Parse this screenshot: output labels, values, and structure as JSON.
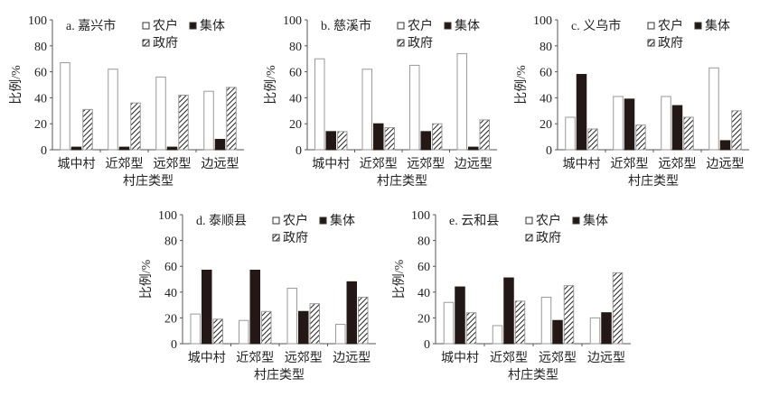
{
  "chart_data": [
    {
      "type": "bar",
      "title": "a. 嘉兴市",
      "xlabel": "村庄类型",
      "ylabel": "比例/%",
      "ylim": [
        0,
        100
      ],
      "yticks": [
        0,
        20,
        40,
        60,
        80,
        100
      ],
      "categories": [
        "城中村",
        "近郊型",
        "远郊型",
        "边远型"
      ],
      "series": [
        {
          "name": "农户",
          "values": [
            67,
            62,
            56,
            45
          ]
        },
        {
          "name": "集体",
          "values": [
            2,
            2,
            2,
            8
          ]
        },
        {
          "name": "政府",
          "values": [
            31,
            36,
            42,
            48
          ]
        }
      ],
      "legend": "top-right"
    },
    {
      "type": "bar",
      "title": "b. 慈溪市",
      "xlabel": "村庄类型",
      "ylabel": "比例/%",
      "ylim": [
        0,
        100
      ],
      "yticks": [
        0,
        20,
        40,
        60,
        80,
        100
      ],
      "categories": [
        "城中村",
        "近郊型",
        "远郊型",
        "边远型"
      ],
      "series": [
        {
          "name": "农户",
          "values": [
            70,
            62,
            65,
            74
          ]
        },
        {
          "name": "集体",
          "values": [
            14,
            20,
            14,
            2
          ]
        },
        {
          "name": "政府",
          "values": [
            14,
            17,
            20,
            23
          ]
        }
      ],
      "legend": "top-right"
    },
    {
      "type": "bar",
      "title": "c. 义乌市",
      "xlabel": "村庄类型",
      "ylabel": "比例/%",
      "ylim": [
        0,
        100
      ],
      "yticks": [
        0,
        20,
        40,
        60,
        80,
        100
      ],
      "categories": [
        "城中村",
        "近郊型",
        "远郊型",
        "边远型"
      ],
      "series": [
        {
          "name": "农户",
          "values": [
            25,
            41,
            41,
            63
          ]
        },
        {
          "name": "集体",
          "values": [
            58,
            39,
            34,
            7
          ]
        },
        {
          "name": "政府",
          "values": [
            16,
            19,
            25,
            30
          ]
        }
      ],
      "legend": "top-right"
    },
    {
      "type": "bar",
      "title": "d. 泰顺县",
      "xlabel": "村庄类型",
      "ylabel": "比例/%",
      "ylim": [
        0,
        100
      ],
      "yticks": [
        0,
        20,
        40,
        60,
        80,
        100
      ],
      "categories": [
        "城中村",
        "近郊型",
        "远郊型",
        "边远型"
      ],
      "series": [
        {
          "name": "农户",
          "values": [
            23,
            18,
            43,
            15
          ]
        },
        {
          "name": "集体",
          "values": [
            57,
            57,
            25,
            48
          ]
        },
        {
          "name": "政府",
          "values": [
            19,
            25,
            31,
            36
          ]
        }
      ],
      "legend": "top-right"
    },
    {
      "type": "bar",
      "title": "e. 云和县",
      "xlabel": "村庄类型",
      "ylabel": "比例/%",
      "ylim": [
        0,
        100
      ],
      "yticks": [
        0,
        20,
        40,
        60,
        80,
        100
      ],
      "categories": [
        "城中村",
        "近郊型",
        "远郊型",
        "边远型"
      ],
      "series": [
        {
          "name": "农户",
          "values": [
            32,
            14,
            36,
            20
          ]
        },
        {
          "name": "集体",
          "values": [
            44,
            51,
            18,
            24
          ]
        },
        {
          "name": "政府",
          "values": [
            24,
            33,
            45,
            55
          ]
        }
      ],
      "legend": "top-right"
    }
  ],
  "colors": {
    "农户": "#ffffff",
    "集体": "#231815",
    "政府": "hatch",
    "axis": "#555555"
  }
}
